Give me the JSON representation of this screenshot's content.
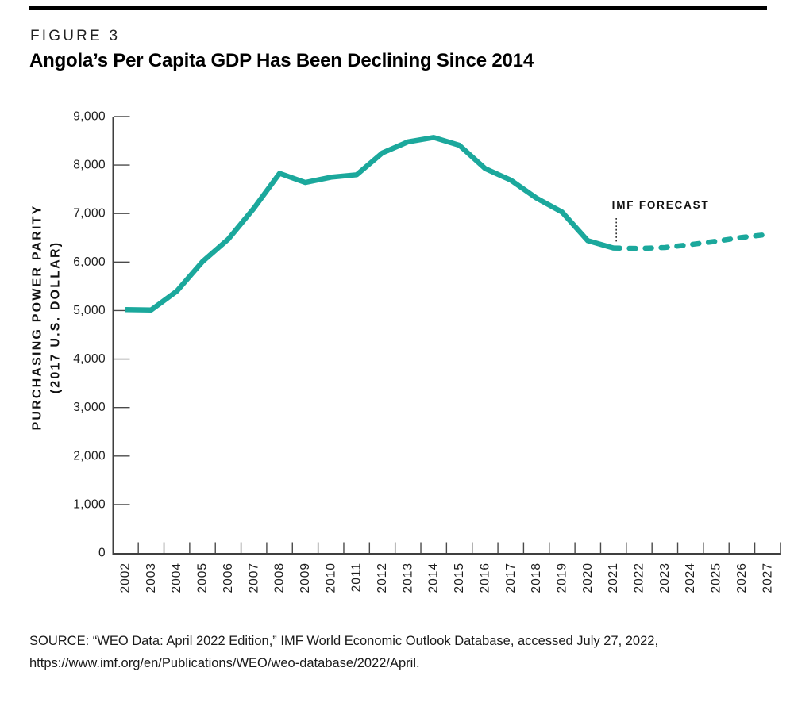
{
  "figure": {
    "label": "FIGURE 3",
    "title": "Angola’s Per Capita GDP Has Been Declining Since 2014"
  },
  "source": {
    "line1": "SOURCE: “WEO Data: April 2022 Edition,” IMF World Economic Outlook Database, accessed July 27, 2022,",
    "line2": "https://www.imf.org/en/Publications/WEO/weo-database/2022/April."
  },
  "chart_data": {
    "type": "line",
    "title": "Angola’s Per Capita GDP Has Been Declining Since 2014",
    "xlabel": "",
    "ylabel": "PURCHASING POWER PARITY (2017 U.S. DOLLAR)",
    "ylabel_lines": [
      "PURCHASING POWER PARITY",
      "(2017 U.S. DOLLAR)"
    ],
    "ylim": [
      0,
      9000
    ],
    "y_tick_step": 1000,
    "y_tick_labels": [
      "0",
      "1,000",
      "2,000",
      "3,000",
      "4,000",
      "5,000",
      "6,000",
      "7,000",
      "8,000",
      "9,000"
    ],
    "x_years": [
      2002,
      2003,
      2004,
      2005,
      2006,
      2007,
      2008,
      2009,
      2010,
      2011,
      2012,
      2013,
      2014,
      2015,
      2016,
      2017,
      2018,
      2019,
      2020,
      2021,
      2022,
      2023,
      2024,
      2025,
      2026,
      2027
    ],
    "grid": false,
    "legend_position": "none",
    "annotation_label": "IMF FORECAST",
    "annotation_year": 2021,
    "colors": {
      "line": "#1ba89c",
      "axis": "#3f3f3f",
      "tick": "#4a4a4a",
      "text": "#1d1d1d"
    },
    "series": [
      {
        "name": "historical",
        "style": "solid",
        "x": [
          2002,
          2003,
          2004,
          2005,
          2006,
          2007,
          2008,
          2009,
          2010,
          2011,
          2012,
          2013,
          2014,
          2015,
          2016,
          2017,
          2018,
          2019,
          2020,
          2021
        ],
        "values": [
          5020,
          5010,
          5400,
          6010,
          6470,
          7110,
          7830,
          7640,
          7750,
          7800,
          8250,
          8480,
          8570,
          8410,
          7930,
          7690,
          7320,
          7030,
          6440,
          6290
        ]
      },
      {
        "name": "imf-forecast",
        "style": "dashed",
        "x": [
          2021,
          2022,
          2023,
          2024,
          2025,
          2026,
          2027
        ],
        "values": [
          6290,
          6280,
          6300,
          6360,
          6430,
          6510,
          6570
        ]
      }
    ]
  }
}
